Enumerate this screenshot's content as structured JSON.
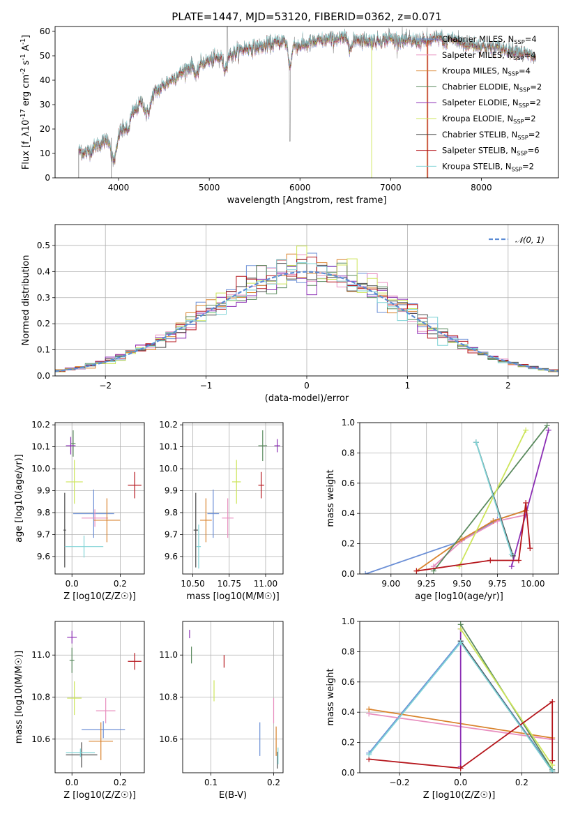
{
  "palette": [
    "#6b8fd6",
    "#e88fbf",
    "#d9822b",
    "#5a8a5e",
    "#8c2fb5",
    "#cde55a",
    "#4a4a4a",
    "#b5151b",
    "#7fd3d6"
  ],
  "chart_data": [
    {
      "id": "spectrum",
      "type": "line",
      "title": "PLATE=1447, MJD=53120, FIBERID=0362, z=0.071",
      "xlabel": "wavelength [Angstrom, rest frame]",
      "ylabel": "Flux [f_λ10^{-17} erg cm^{-2} s^{-1} A^{-1}]",
      "xlim": [
        3300,
        8850
      ],
      "ylim": [
        0,
        62
      ],
      "xticks": [
        4000,
        5000,
        6000,
        7000,
        8000
      ],
      "yticks": [
        0,
        10,
        20,
        30,
        40,
        50,
        60
      ],
      "grid": false,
      "legend_position": "right",
      "continuum": {
        "x": [
          3560,
          3650,
          3750,
          3850,
          3950,
          4050,
          4150,
          4250,
          4350,
          4500,
          4650,
          4800,
          5000,
          5200,
          5400,
          5600,
          5800,
          6000,
          6200,
          6400,
          6600,
          6800,
          7000,
          7200,
          7400,
          7600,
          7800,
          8000,
          8200,
          8400,
          8600
        ],
        "y": [
          11,
          10,
          13,
          15,
          17,
          20,
          26,
          31,
          33,
          38,
          42,
          46,
          48,
          50,
          53,
          54,
          56,
          54,
          56,
          57,
          57,
          56,
          57,
          56,
          56,
          58,
          55,
          54,
          53,
          52,
          49
        ]
      },
      "series": [
        {
          "name": "Chabrier MILES, N_{SSP}=4"
        },
        {
          "name": "Salpeter MILES, N_{SSP}=4"
        },
        {
          "name": "Kroupa MILES, N_{SSP}=4"
        },
        {
          "name": "Chabrier ELODIE, N_{SSP}=2"
        },
        {
          "name": "Salpeter ELODIE, N_{SSP}=2"
        },
        {
          "name": "Kroupa ELODIE, N_{SSP}=2"
        },
        {
          "name": "Chabrier STELIB, N_{SSP}=2"
        },
        {
          "name": "Salpeter STELIB, N_{SSP}=6"
        },
        {
          "name": "Kroupa STELIB, N_{SSP}=2"
        }
      ]
    },
    {
      "id": "residuals",
      "type": "line",
      "xlabel": "(data-model)/error",
      "ylabel": "Normed distribution",
      "xlim": [
        -2.5,
        2.5
      ],
      "ylim": [
        0,
        0.58
      ],
      "xticks": [
        -2,
        -1,
        0,
        1,
        2
      ],
      "yticks": [
        0.0,
        0.1,
        0.2,
        0.3,
        0.4,
        0.5
      ],
      "grid": true,
      "legend_position": "top-right",
      "legend_label": "𝒩(0, 1)",
      "bin_width": 0.1
    },
    {
      "id": "age_vs_Z",
      "type": "scatter",
      "xlabel": "Z [log10(Z/Z☉)]",
      "ylabel": "age [log10(age/yr)]",
      "xlim": [
        -0.07,
        0.3
      ],
      "ylim": [
        9.52,
        10.21
      ],
      "xticks": [
        0.0,
        0.2
      ],
      "yticks": [
        9.6,
        9.7,
        9.8,
        9.9,
        10.0,
        10.1,
        10.2
      ],
      "grid": true,
      "points": [
        {
          "x": 0.09,
          "y": 9.795,
          "xerr": 0.085,
          "yerr": 0.11,
          "c": 0
        },
        {
          "x": 0.095,
          "y": 9.775,
          "xerr": 0.055,
          "yerr": 0.04,
          "c": 1
        },
        {
          "x": 0.145,
          "y": 9.765,
          "xerr": 0.055,
          "yerr": 0.1,
          "c": 2
        },
        {
          "x": 0.005,
          "y": 10.115,
          "xerr": 0.01,
          "yerr": 0.06,
          "c": 3
        },
        {
          "x": -0.005,
          "y": 10.105,
          "xerr": 0.02,
          "yerr": 0.04,
          "c": 4
        },
        {
          "x": 0.01,
          "y": 9.94,
          "xerr": 0.035,
          "yerr": 0.1,
          "c": 5
        },
        {
          "x": -0.03,
          "y": 9.72,
          "xerr": 0.005,
          "yerr": 0.17,
          "c": 6
        },
        {
          "x": 0.26,
          "y": 9.925,
          "xerr": 0.028,
          "yerr": 0.06,
          "c": 7
        },
        {
          "x": 0.05,
          "y": 9.645,
          "xerr": 0.08,
          "yerr": 0.05,
          "c": 8
        }
      ]
    },
    {
      "id": "age_vs_mass",
      "type": "scatter",
      "xlabel": "mass [log10(M/M☉)]",
      "ylabel": "",
      "xlim": [
        10.43,
        11.12
      ],
      "ylim": [
        9.52,
        10.21
      ],
      "xticks": [
        10.5,
        10.75,
        11.0
      ],
      "yticks": [
        9.6,
        9.7,
        9.8,
        9.9,
        10.0,
        10.1,
        10.2
      ],
      "grid": true,
      "points": [
        {
          "x": 10.64,
          "y": 9.795,
          "xerr": 0.04,
          "yerr": 0.11,
          "c": 0
        },
        {
          "x": 10.74,
          "y": 9.775,
          "xerr": 0.04,
          "yerr": 0.09,
          "c": 1
        },
        {
          "x": 10.59,
          "y": 9.765,
          "xerr": 0.04,
          "yerr": 0.1,
          "c": 2
        },
        {
          "x": 10.98,
          "y": 10.105,
          "xerr": 0.03,
          "yerr": 0.07,
          "c": 3
        },
        {
          "x": 11.08,
          "y": 10.105,
          "xerr": 0.02,
          "yerr": 0.03,
          "c": 4
        },
        {
          "x": 10.8,
          "y": 9.94,
          "xerr": 0.03,
          "yerr": 0.1,
          "c": 5
        },
        {
          "x": 10.52,
          "y": 9.72,
          "xerr": 0.015,
          "yerr": 0.17,
          "c": 6
        },
        {
          "x": 10.97,
          "y": 9.925,
          "xerr": 0.02,
          "yerr": 0.06,
          "c": 7
        },
        {
          "x": 10.54,
          "y": 9.645,
          "xerr": 0.015,
          "yerr": 0.1,
          "c": 8
        }
      ]
    },
    {
      "id": "weight_vs_age",
      "type": "line",
      "xlabel": "age [log10(age/yr)]",
      "ylabel": "mass weight",
      "xlim": [
        8.78,
        10.18
      ],
      "ylim": [
        0.0,
        1.0
      ],
      "xticks": [
        9.0,
        9.25,
        9.5,
        9.75,
        10.0
      ],
      "yticks": [
        0.0,
        0.2,
        0.4,
        0.6,
        0.8,
        1.0
      ],
      "grid": true,
      "series": [
        {
          "c": 0,
          "x": [
            8.82,
            9.5,
            9.75,
            9.95
          ],
          "y": [
            0.0,
            0.22,
            0.36,
            0.42
          ]
        },
        {
          "c": 1,
          "x": [
            9.3,
            9.5,
            9.75,
            9.95
          ],
          "y": [
            0.05,
            0.22,
            0.35,
            0.39
          ]
        },
        {
          "c": 2,
          "x": [
            9.18,
            9.5,
            9.72,
            9.95
          ],
          "y": [
            0.02,
            0.23,
            0.35,
            0.42
          ]
        },
        {
          "c": 3,
          "x": [
            9.3,
            10.1
          ],
          "y": [
            0.02,
            0.98
          ]
        },
        {
          "c": 4,
          "x": [
            9.85,
            10.11
          ],
          "y": [
            0.05,
            0.95
          ]
        },
        {
          "c": 5,
          "x": [
            9.48,
            9.95
          ],
          "y": [
            0.05,
            0.95
          ]
        },
        {
          "c": 6,
          "x": [
            9.6,
            9.86
          ],
          "y": [
            0.87,
            0.12
          ]
        },
        {
          "c": 7,
          "x": [
            9.18,
            9.7,
            9.9,
            9.95,
            9.98
          ],
          "y": [
            0.02,
            0.09,
            0.09,
            0.47,
            0.17
          ]
        },
        {
          "c": 8,
          "x": [
            9.6,
            9.85
          ],
          "y": [
            0.87,
            0.13
          ]
        }
      ]
    },
    {
      "id": "mass_vs_Z",
      "type": "scatter",
      "xlabel": "Z [log10(Z/Z☉)]",
      "ylabel": "mass [log10(M/M☉)]",
      "xlim": [
        -0.07,
        0.3
      ],
      "ylim": [
        10.44,
        11.16
      ],
      "xticks": [
        0.0,
        0.2
      ],
      "yticks": [
        10.6,
        10.8,
        11.0
      ],
      "grid": true,
      "points": [
        {
          "x": 0.13,
          "y": 10.645,
          "xerr": 0.09,
          "yerr": 0.04,
          "c": 0
        },
        {
          "x": 0.14,
          "y": 10.735,
          "xerr": 0.04,
          "yerr": 0.06,
          "c": 1
        },
        {
          "x": 0.12,
          "y": 10.59,
          "xerr": 0.05,
          "yerr": 0.09,
          "c": 2
        },
        {
          "x": 0.0,
          "y": 10.975,
          "xerr": 0.01,
          "yerr": 0.06,
          "c": 3
        },
        {
          "x": 0.0,
          "y": 11.085,
          "xerr": 0.02,
          "yerr": 0.03,
          "c": 4
        },
        {
          "x": 0.01,
          "y": 10.795,
          "xerr": 0.03,
          "yerr": 0.08,
          "c": 5
        },
        {
          "x": 0.04,
          "y": 10.525,
          "xerr": 0.065,
          "yerr": 0.06,
          "c": 6
        },
        {
          "x": 0.26,
          "y": 10.97,
          "xerr": 0.028,
          "yerr": 0.04,
          "c": 7
        },
        {
          "x": 0.035,
          "y": 10.535,
          "xerr": 0.06,
          "yerr": 0.02,
          "c": 8
        }
      ]
    },
    {
      "id": "mass_vs_ebv",
      "type": "scatter",
      "xlabel": "E(B-V)",
      "ylabel": "",
      "xlim": [
        0.055,
        0.215
      ],
      "ylim": [
        10.44,
        11.16
      ],
      "xticks": [
        0.1,
        0.2
      ],
      "yticks": [
        10.6,
        10.8,
        11.0
      ],
      "grid": true,
      "points": [
        {
          "x": 0.178,
          "y": 10.6,
          "xerr": 0,
          "yerr": 0.08,
          "c": 0
        },
        {
          "x": 0.2,
          "y": 10.735,
          "xerr": 0,
          "yerr": 0.06,
          "c": 1
        },
        {
          "x": 0.204,
          "y": 10.59,
          "xerr": 0,
          "yerr": 0.07,
          "c": 2
        },
        {
          "x": 0.069,
          "y": 11.0,
          "xerr": 0,
          "yerr": 0.04,
          "c": 3
        },
        {
          "x": 0.066,
          "y": 11.1,
          "xerr": 0,
          "yerr": 0.02,
          "c": 4
        },
        {
          "x": 0.105,
          "y": 10.83,
          "xerr": 0,
          "yerr": 0.05,
          "c": 5
        },
        {
          "x": 0.206,
          "y": 10.5,
          "xerr": 0,
          "yerr": 0.04,
          "c": 6
        },
        {
          "x": 0.121,
          "y": 10.97,
          "xerr": 0,
          "yerr": 0.03,
          "c": 7
        },
        {
          "x": 0.207,
          "y": 10.52,
          "xerr": 0,
          "yerr": 0.04,
          "c": 8
        }
      ]
    },
    {
      "id": "weight_vs_Z",
      "type": "line",
      "xlabel": "Z [log10(Z/Z☉)]",
      "ylabel": "mass weight",
      "xlim": [
        -0.33,
        0.32
      ],
      "ylim": [
        0.0,
        1.0
      ],
      "xticks": [
        -0.2,
        0.0,
        0.2
      ],
      "yticks": [
        0.0,
        0.2,
        0.4,
        0.6,
        0.8,
        1.0
      ],
      "grid": true,
      "series": [
        {
          "c": 0,
          "x": [
            -0.3,
            0.0,
            0.3
          ],
          "y": [
            0.13,
            0.87,
            0.02
          ]
        },
        {
          "c": 1,
          "x": [
            -0.3,
            0.3
          ],
          "y": [
            0.39,
            0.22
          ]
        },
        {
          "c": 2,
          "x": [
            -0.3,
            0.3
          ],
          "y": [
            0.42,
            0.23
          ]
        },
        {
          "c": 3,
          "x": [
            0.0,
            0.3
          ],
          "y": [
            0.98,
            0.02
          ]
        },
        {
          "c": 4,
          "x": [
            0.0,
            0.0
          ],
          "y": [
            0.04,
            0.95
          ]
        },
        {
          "c": 5,
          "x": [
            0.0,
            0.3
          ],
          "y": [
            0.95,
            0.05
          ]
        },
        {
          "c": 6,
          "x": [
            0.0,
            0.3
          ],
          "y": [
            0.87,
            0.01
          ]
        },
        {
          "c": 7,
          "x": [
            -0.3,
            0.0,
            0.3,
            0.3
          ],
          "y": [
            0.09,
            0.03,
            0.47,
            0.08
          ]
        },
        {
          "c": 8,
          "x": [
            -0.3,
            0.0,
            0.3
          ],
          "y": [
            0.12,
            0.86,
            0.01
          ]
        }
      ]
    }
  ]
}
